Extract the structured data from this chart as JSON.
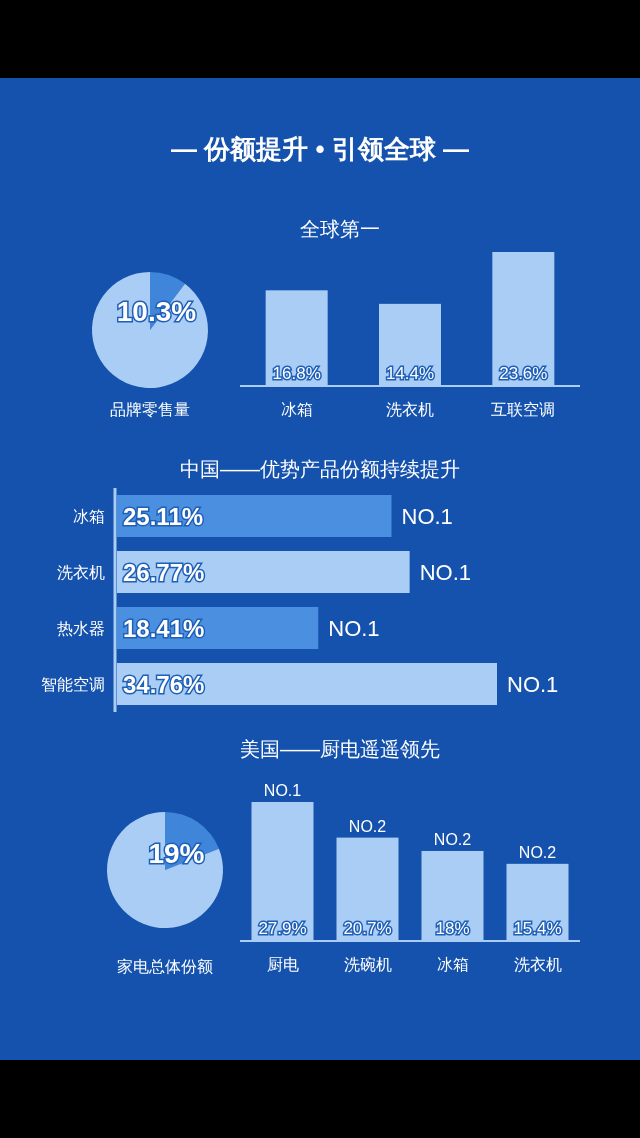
{
  "chart_data": [
    {
      "type": "pie",
      "title": "— 份额提升 • 引领全球 —",
      "xlabel": "品牌零售量",
      "categories": [
        null,
        null
      ],
      "values": [
        10.3,
        89.7
      ],
      "value_labels": [
        "10.3%",
        null
      ],
      "colors": [
        "#3f86db",
        "#a9cdf4"
      ]
    },
    {
      "type": "bar",
      "title": "全球第一",
      "categories": [
        "冰箱",
        "洗衣机",
        "互联空调"
      ],
      "values": [
        16.8,
        14.4,
        23.6
      ],
      "value_labels": [
        "16.8%",
        "14.4%",
        "23.6%"
      ],
      "color": "#a9cdf4"
    },
    {
      "type": "bar",
      "orientation": "horizontal",
      "title": "中国——优势产品份额持续提升",
      "categories": [
        "冰箱",
        "洗衣机",
        "热水器",
        "智能空调"
      ],
      "values": [
        25.11,
        26.77,
        18.41,
        34.76
      ],
      "value_labels": [
        "25.11%",
        "26.77%",
        "18.41%",
        "34.76%"
      ],
      "colors": [
        "#4a8fe0",
        "#a9cdf4",
        "#4a8fe0",
        "#a9cdf4"
      ],
      "annotations": [
        {
          "text": "NO.1",
          "x": 25.11,
          "y": "冰箱"
        },
        {
          "text": "NO.1",
          "x": 26.77,
          "y": "洗衣机"
        },
        {
          "text": "NO.1",
          "x": 18.41,
          "y": "热水器"
        },
        {
          "text": "NO.1",
          "x": 34.76,
          "y": "智能空调"
        }
      ]
    },
    {
      "type": "pie",
      "xlabel": "家电总体份额",
      "categories": [
        null,
        null
      ],
      "values": [
        19,
        81
      ],
      "value_labels": [
        "19%",
        null
      ],
      "colors": [
        "#3f86db",
        "#a9cdf4"
      ]
    },
    {
      "type": "bar",
      "title": "美国——厨电遥遥领先",
      "categories": [
        "厨电",
        "洗碗机",
        "冰箱",
        "洗衣机"
      ],
      "values": [
        27.9,
        20.7,
        18,
        15.4
      ],
      "value_labels": [
        "27.9%",
        "20.7%",
        "18%",
        "15.4%"
      ],
      "color": "#a9cdf4",
      "annotations": [
        {
          "text": "NO.1",
          "x": "厨电",
          "y": 27.9
        },
        {
          "text": "NO.2",
          "x": "洗碗机",
          "y": 20.7
        },
        {
          "text": "NO.2",
          "x": "冰箱",
          "y": 18
        },
        {
          "text": "NO.2",
          "x": "洗衣机",
          "y": 15.4
        }
      ]
    }
  ]
}
